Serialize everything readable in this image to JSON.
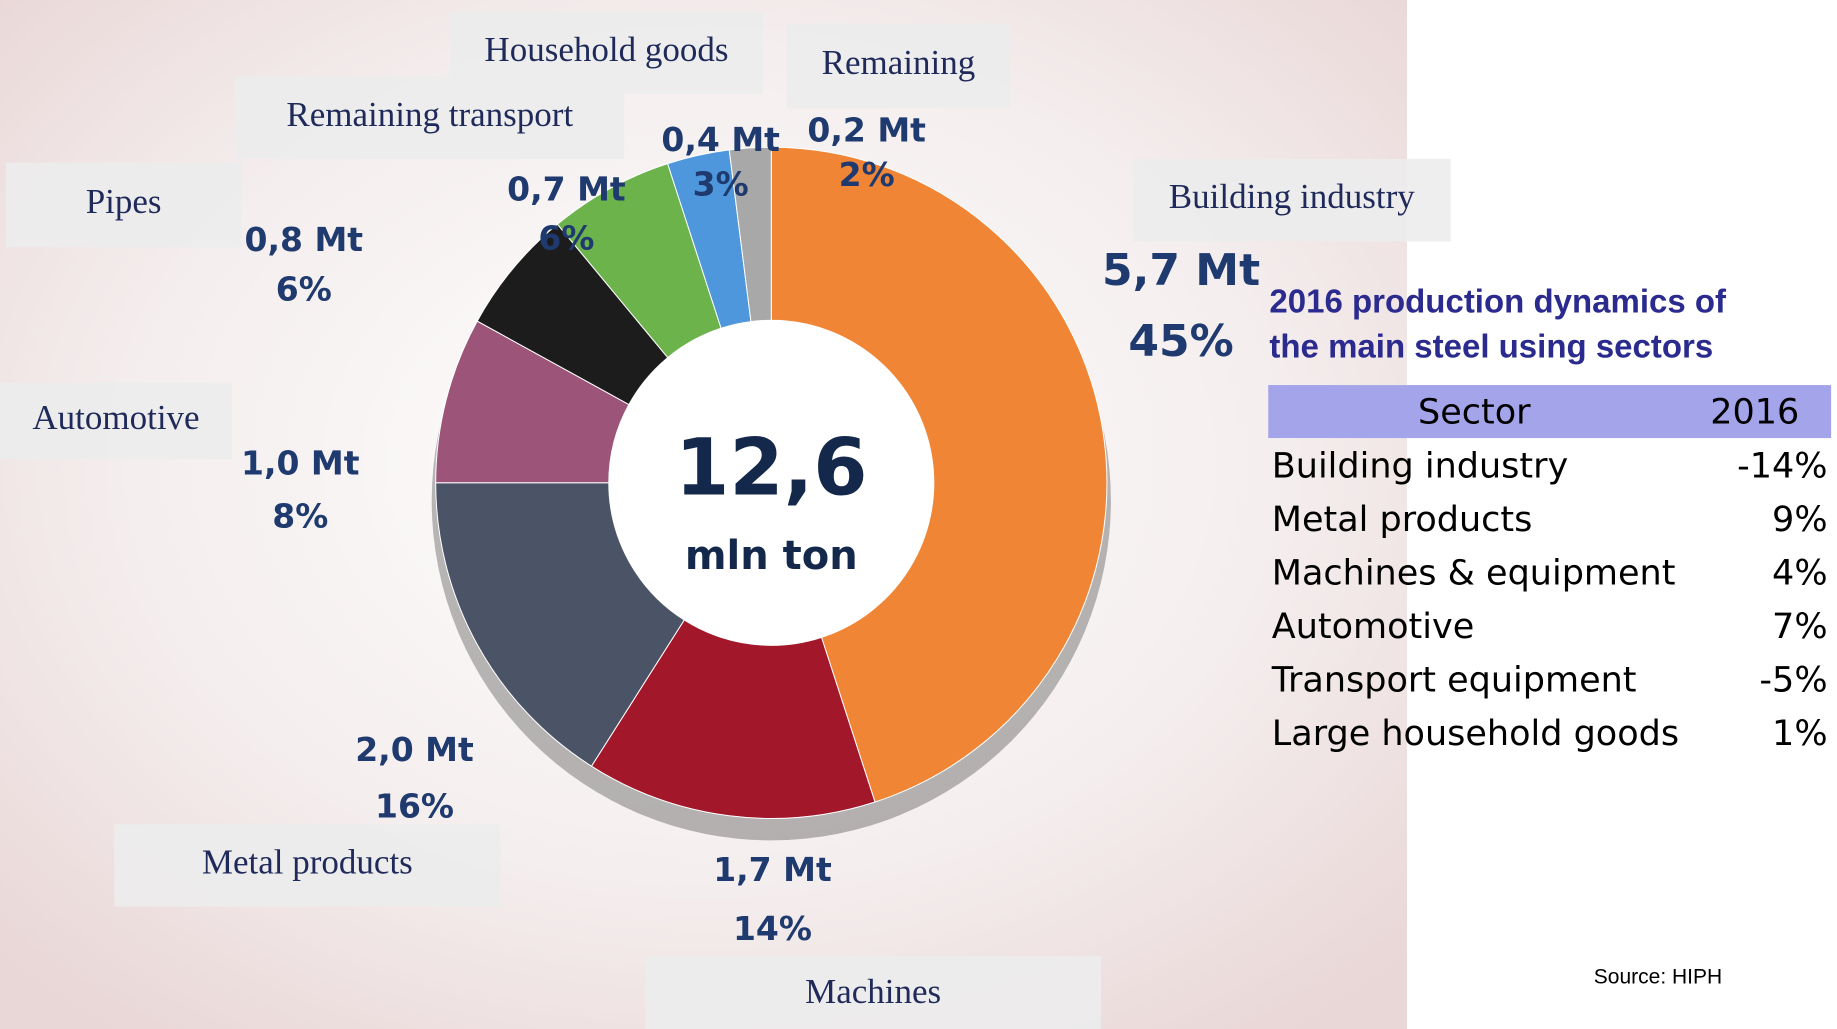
{
  "chart_data": {
    "type": "pie",
    "categories": [
      "Building industry",
      "Machines",
      "Metal products",
      "Automotive",
      "Pipes",
      "Remaining transport",
      "Household goods",
      "Remaining"
    ],
    "values": [
      45,
      14,
      16,
      8,
      6,
      6,
      3,
      2
    ],
    "value_labels": [
      "45%",
      "14%",
      "16%",
      "8%",
      "6%",
      "6%",
      "3%",
      "2%"
    ],
    "tonnage": [
      5.7,
      1.7,
      2.0,
      1.0,
      0.8,
      0.7,
      0.4,
      0.2
    ],
    "tonnage_labels": [
      "5,7 Mt",
      "1,7 Mt",
      "2,0 Mt",
      "1,0 Mt",
      "0,8 Mt",
      "0,7 Mt",
      "0,4 Mt",
      "0,2 Mt"
    ],
    "colors": [
      "#ef8535",
      "#a3172a",
      "#4b5466",
      "#9c5478",
      "#1c1c1c",
      "#6cb34c",
      "#4f97dc",
      "#a8a8a8"
    ],
    "total": "12,6",
    "total_unit": "mln ton"
  },
  "table": {
    "title": [
      "2016 production dynamics of",
      "the main steel using sectors"
    ],
    "header": [
      "Sector",
      "2016"
    ],
    "rows": [
      [
        "Building industry",
        "-14%"
      ],
      [
        "Metal products",
        "9%"
      ],
      [
        "Machines & equipment",
        "4%"
      ],
      [
        "Automotive",
        "7%"
      ],
      [
        "Transport equipment",
        "-5%"
      ],
      [
        "Large household goods",
        "1%"
      ]
    ]
  },
  "source": "Source: HIPH"
}
